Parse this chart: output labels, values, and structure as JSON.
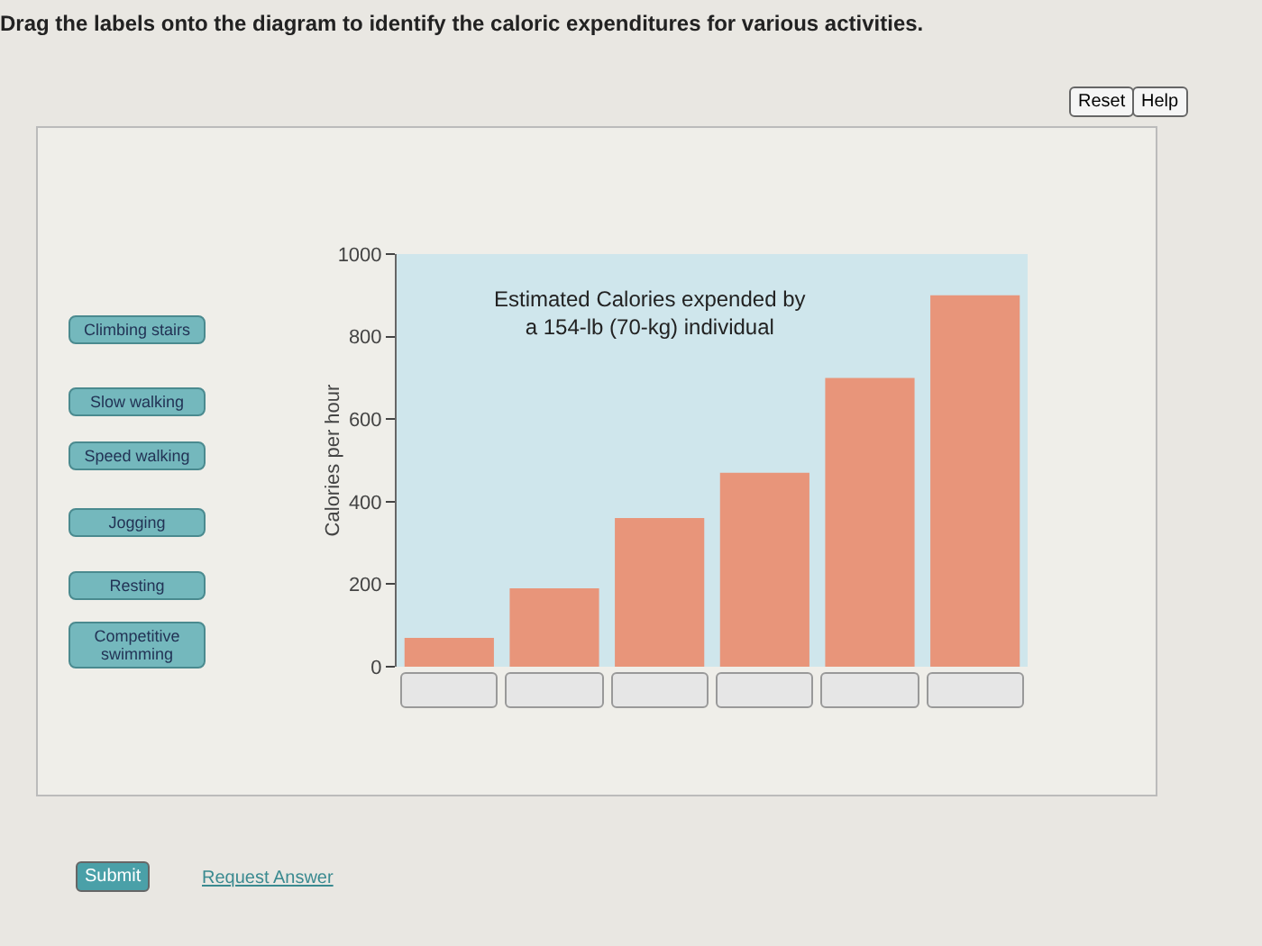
{
  "chart_data": {
    "type": "bar",
    "title": "Drag the labels onto the diagram to identify the caloric expenditures for various activities.",
    "subtitle": "Estimated Calories expended by a 154-lb (70-kg) individual",
    "ylabel": "Calories per hour",
    "categories": [
      null,
      null,
      null,
      null,
      null,
      null
    ],
    "values": [
      70,
      190,
      360,
      470,
      700,
      900
    ],
    "color": "#e8957a",
    "ylim": [
      0,
      1000
    ],
    "yticks": [
      0,
      200,
      400,
      600,
      800,
      1000
    ],
    "grid": false,
    "annotations": [
      "Climbing stairs",
      "Slow walking",
      "Speed walking",
      "Jogging",
      "Resting",
      "Competitive swimming",
      "Reset",
      "Help",
      "Submit",
      "Request Answer"
    ]
  }
}
